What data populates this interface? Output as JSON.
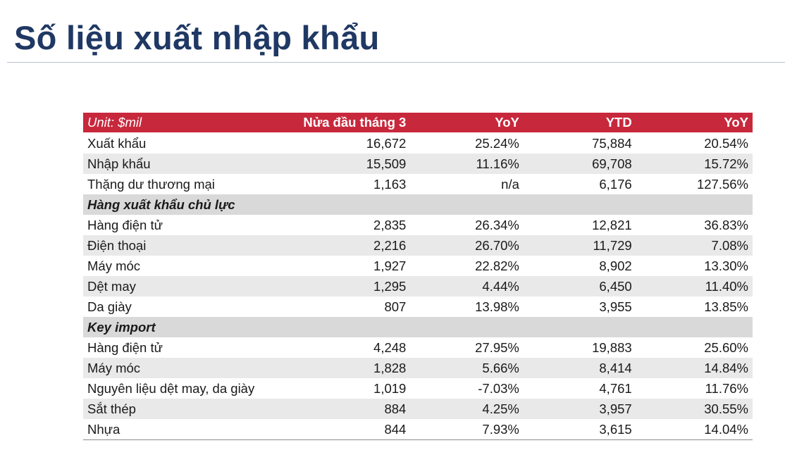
{
  "page": {
    "title": "Số liệu xuất nhập khẩu"
  },
  "table": {
    "headers": [
      "Unit: $mil",
      "Nửa đầu tháng 3",
      "YoY",
      "YTD",
      "YoY"
    ],
    "rows": [
      {
        "type": "data",
        "cells": [
          "Xuất khẩu",
          "16,672",
          "25.24%",
          "75,884",
          "20.54%"
        ]
      },
      {
        "type": "data",
        "cells": [
          "Nhập khẩu",
          "15,509",
          "11.16%",
          "69,708",
          "15.72%"
        ]
      },
      {
        "type": "data",
        "cells": [
          "Thặng dư thương mại",
          "1,163",
          "n/a",
          "6,176",
          "127.56%"
        ]
      },
      {
        "type": "section",
        "cells": [
          "Hàng xuất khẩu chủ lực",
          "",
          "",
          "",
          ""
        ]
      },
      {
        "type": "data",
        "cells": [
          "Hàng điện tử",
          "2,835",
          "26.34%",
          "12,821",
          "36.83%"
        ]
      },
      {
        "type": "data",
        "cells": [
          "Điện thoại",
          "2,216",
          "26.70%",
          "11,729",
          "7.08%"
        ]
      },
      {
        "type": "data",
        "cells": [
          "Máy móc",
          "1,927",
          "22.82%",
          "8,902",
          "13.30%"
        ]
      },
      {
        "type": "data",
        "cells": [
          "Dệt may",
          "1,295",
          "4.44%",
          "6,450",
          "11.40%"
        ]
      },
      {
        "type": "data",
        "cells": [
          "Da giày",
          "807",
          "13.98%",
          "3,955",
          "13.85%"
        ]
      },
      {
        "type": "section",
        "cells": [
          "Key import",
          "",
          "",
          "",
          ""
        ]
      },
      {
        "type": "data",
        "cells": [
          "Hàng điện tử",
          "4,248",
          "27.95%",
          "19,883",
          "25.60%"
        ]
      },
      {
        "type": "data",
        "cells": [
          "Máy móc",
          "1,828",
          "5.66%",
          "8,414",
          "14.84%"
        ]
      },
      {
        "type": "data",
        "cells": [
          "Nguyên liệu dệt may, da giày",
          "1,019",
          "-7.03%",
          "4,761",
          "11.76%"
        ]
      },
      {
        "type": "data",
        "cells": [
          "Sắt thép",
          "884",
          "4.25%",
          "3,957",
          "30.55%"
        ]
      },
      {
        "type": "data",
        "cells": [
          "Nhựa",
          "844",
          "7.93%",
          "3,615",
          "14.04%"
        ]
      }
    ]
  },
  "colors": {
    "title": "#1f3864",
    "header_bg": "#c8283c",
    "section_bg": "#d9d9d9",
    "stripe_bg": "#e9e9e9"
  }
}
